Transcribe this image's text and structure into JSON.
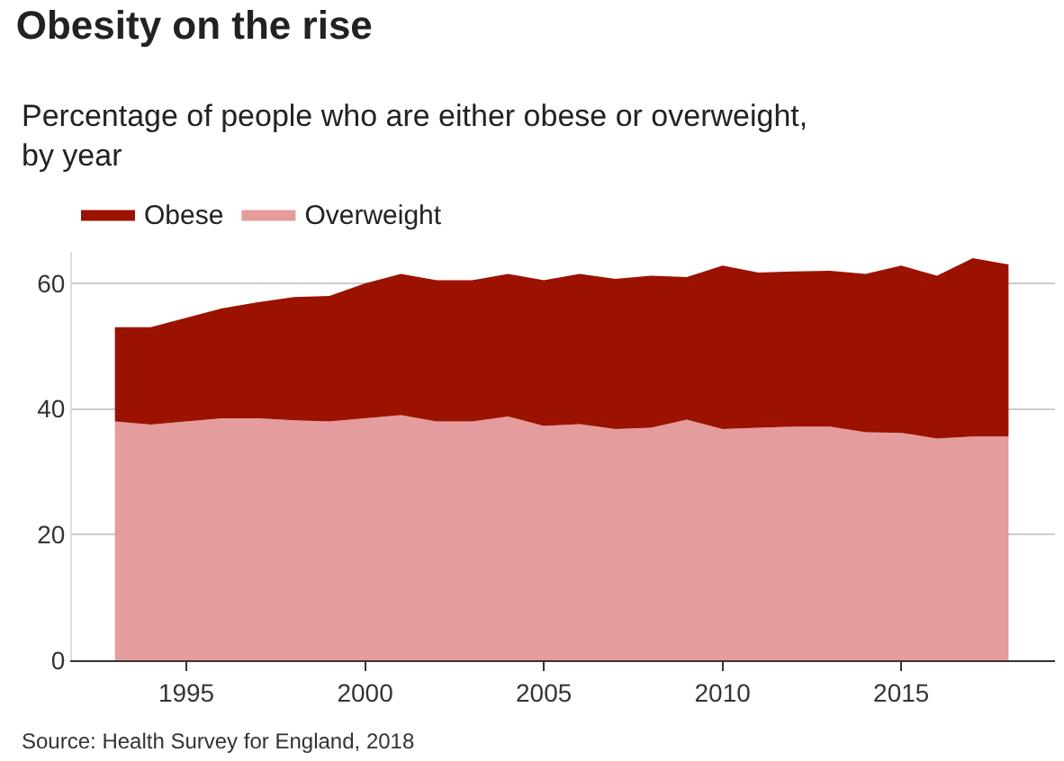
{
  "chart_data": {
    "type": "area",
    "stacked": true,
    "title": "Obesity on the rise",
    "subtitle": "Percentage of people who are either obese or overweight, by year",
    "x": [
      1993,
      1994,
      1995,
      1996,
      1997,
      1998,
      1999,
      2000,
      2001,
      2002,
      2003,
      2004,
      2005,
      2006,
      2007,
      2008,
      2009,
      2010,
      2011,
      2012,
      2013,
      2014,
      2015,
      2016,
      2017,
      2018
    ],
    "series": [
      {
        "name": "Overweight",
        "color": "#e59c9c",
        "values": [
          38,
          37.5,
          38,
          38.5,
          38.5,
          38.2,
          38,
          38.5,
          39,
          38,
          38,
          38.8,
          37.3,
          37.6,
          36.8,
          37,
          38.3,
          36.8,
          37,
          37.2,
          37.2,
          36.3,
          36.2,
          35.3,
          35.6,
          35.6
        ]
      },
      {
        "name": "Obese",
        "color": "#9c1200",
        "values": [
          15,
          15.5,
          16.5,
          17.5,
          18.5,
          19.6,
          20,
          21.5,
          22.5,
          22.5,
          22.5,
          22.7,
          23.2,
          23.9,
          23.9,
          24.2,
          22.7,
          26,
          24.7,
          24.7,
          24.8,
          25.2,
          26.6,
          25.9,
          28.4,
          27.4
        ]
      }
    ],
    "xlim": [
      1991.8,
      2019.3
    ],
    "xticks": [
      1995,
      2000,
      2005,
      2010,
      2015
    ],
    "ylim": [
      0,
      65
    ],
    "yticks": [
      0,
      20,
      40,
      60
    ],
    "grid": "y",
    "legend": "top left",
    "annotations": [
      "Source: Health Survey for England, 2018"
    ]
  }
}
